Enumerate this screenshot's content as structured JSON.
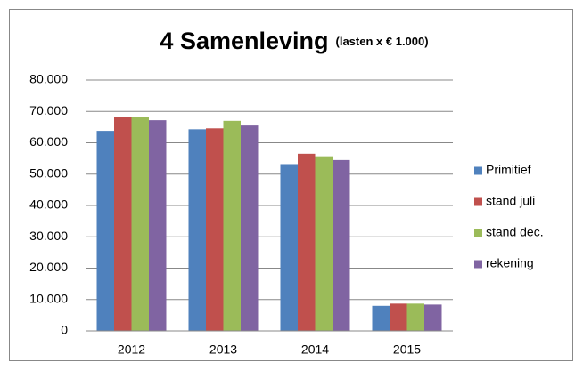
{
  "chart_data": {
    "type": "bar",
    "title": "4  Samenleving",
    "subtitle": "(lasten x € 1.000)",
    "categories": [
      "2012",
      "2013",
      "2014",
      "2015"
    ],
    "series": [
      {
        "name": "Primitief",
        "color": "#4f81bd",
        "values": [
          63800,
          64300,
          53200,
          8000
        ]
      },
      {
        "name": "stand juli",
        "color": "#c0504d",
        "values": [
          68200,
          64600,
          56500,
          8700
        ]
      },
      {
        "name": "stand dec.",
        "color": "#9bbb59",
        "values": [
          68200,
          67000,
          55700,
          8700
        ]
      },
      {
        "name": "rekening",
        "color": "#8064a2",
        "values": [
          67200,
          65500,
          54500,
          8400
        ]
      }
    ],
    "ylim": [
      0,
      80000
    ],
    "yticks": [
      0,
      {
        "value": 10000,
        "label": "10.000"
      },
      {
        "value": 20000,
        "label": "20.000"
      },
      {
        "value": 30000,
        "label": "30.000"
      },
      {
        "value": 40000,
        "label": "40.000"
      },
      {
        "value": 50000,
        "label": "50.000"
      },
      {
        "value": 60000,
        "label": "60.000"
      },
      {
        "value": 70000,
        "label": "70.000"
      },
      {
        "value": 80000,
        "label": "80.000"
      }
    ],
    "grid": true,
    "legend": "right"
  }
}
